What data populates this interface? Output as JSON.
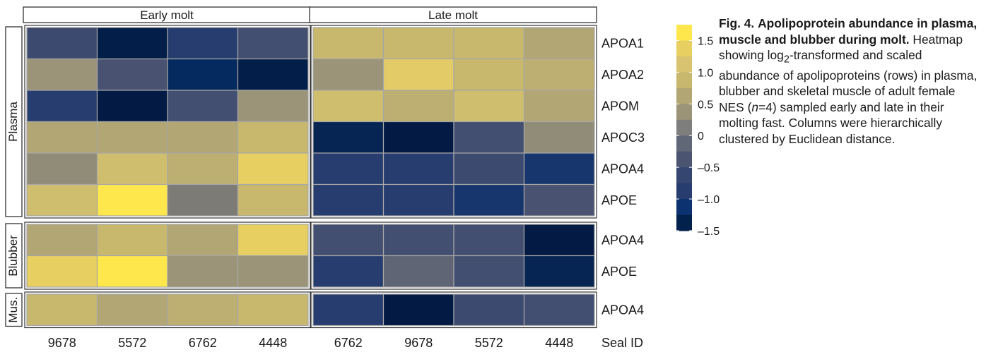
{
  "chart_data": {
    "type": "heatmap",
    "column_groups": [
      {
        "label": "Early molt",
        "columns": [
          "9678",
          "5572",
          "6762",
          "4448"
        ]
      },
      {
        "label": "Late molt",
        "columns": [
          "6762",
          "9678",
          "5572",
          "4448"
        ]
      }
    ],
    "x_axis_title": "Seal ID",
    "row_groups": [
      {
        "label": "Plasma",
        "rows": [
          {
            "label": "APOA1",
            "early": [
              -0.8,
              -1.7,
              -1.1,
              -0.7
            ],
            "late": [
              0.8,
              0.8,
              0.8,
              0.6
            ]
          },
          {
            "label": "APOA2",
            "early": [
              0.4,
              -0.6,
              -1.4,
              -1.7
            ],
            "late": [
              0.4,
              1.2,
              0.8,
              0.7
            ]
          },
          {
            "label": "APOM",
            "early": [
              -1.1,
              -1.8,
              -0.7,
              0.4
            ],
            "late": [
              0.9,
              0.7,
              0.9,
              0.6
            ]
          },
          {
            "label": "APOC3",
            "early": [
              0.6,
              0.6,
              0.6,
              0.8
            ],
            "late": [
              -1.5,
              -1.8,
              -0.7,
              0.3
            ]
          },
          {
            "label": "APOA4",
            "early": [
              0.3,
              0.9,
              0.7,
              1.3
            ],
            "late": [
              -1.1,
              -1.1,
              -0.8,
              -1.2
            ]
          },
          {
            "label": "APOE",
            "early": [
              0.9,
              1.7,
              0.1,
              0.8
            ],
            "late": [
              -1.1,
              -1.1,
              -1.2,
              -0.6
            ]
          }
        ]
      },
      {
        "label": "Blubber",
        "rows": [
          {
            "label": "APOA4",
            "early": [
              0.6,
              0.8,
              0.6,
              1.3
            ],
            "late": [
              -0.7,
              -0.7,
              -0.7,
              -1.8
            ]
          },
          {
            "label": "APOE",
            "early": [
              1.3,
              1.7,
              0.4,
              0.4
            ],
            "late": [
              -1.1,
              -0.3,
              -0.7,
              -1.5
            ]
          }
        ]
      },
      {
        "label": "Mus.",
        "rows": [
          {
            "label": "APOA4",
            "early": [
              0.8,
              0.6,
              0.7,
              0.8
            ],
            "late": [
              -1.1,
              -1.8,
              -0.8,
              -0.7
            ]
          }
        ]
      }
    ],
    "legend": {
      "tick_labels": [
        "1.5",
        "1.0",
        "0.5",
        "0",
        "–0.5",
        "–1.0",
        "–1.5"
      ],
      "bins": [
        1.5,
        1.25,
        1.0,
        0.75,
        0.5,
        0.25,
        0,
        -0.25,
        -0.5,
        -0.75,
        -1.0,
        -1.25,
        -1.5
      ],
      "colors": [
        "#fde74c",
        "#e8cf62",
        "#d8c470",
        "#c7b86e",
        "#b2a674",
        "#9b9478",
        "#7e7e7d",
        "#606877",
        "#4b5470",
        "#354670",
        "#283d6f",
        "#0c3270",
        "#03214d"
      ]
    },
    "color_scale": {
      "domain": [
        -1.8,
        1.8
      ],
      "stops": [
        [
          -1.8,
          "#021a44"
        ],
        [
          -1.5,
          "#062552"
        ],
        [
          -1.3,
          "#052f6c"
        ],
        [
          -1.1,
          "#283d6f"
        ],
        [
          -0.8,
          "#3d4a70"
        ],
        [
          -0.5,
          "#4f5872"
        ],
        [
          -0.2,
          "#676b76"
        ],
        [
          0.1,
          "#7d7b75"
        ],
        [
          0.4,
          "#9b9478"
        ],
        [
          0.6,
          "#b2a674"
        ],
        [
          0.8,
          "#c7b86e"
        ],
        [
          1.0,
          "#d8c470"
        ],
        [
          1.3,
          "#e8cf62"
        ],
        [
          1.7,
          "#fde74c"
        ]
      ]
    }
  },
  "caption": {
    "fig_label": "Fig. 4.",
    "title": "Apolipoprotein abundance in plasma, muscle and blubber during molt.",
    "body_1": "Heatmap showing log",
    "sub": "2",
    "body_2": "-transformed and scaled abundance of apolipoproteins (rows) in plasma, blubber and skeletal muscle of adult female NES (",
    "n_symbol": "n",
    "body_3": "=4) sampled early and late in their molting fast. Columns were hierarchically clustered by Euclidean distance."
  }
}
